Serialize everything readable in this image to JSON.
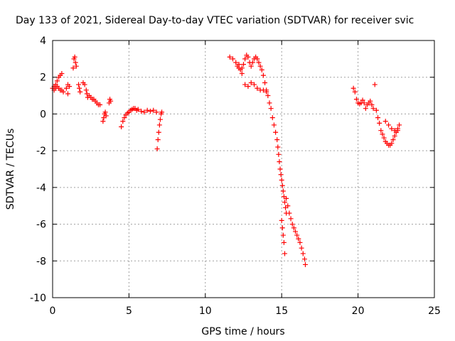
{
  "chart_data": {
    "type": "scatter",
    "title": "Day 133 of 2021, Sidereal Day-to-day VTEC variation (SDTVAR) for receiver svic",
    "xlabel": "GPS time / hours",
    "ylabel": "SDTVAR / TECUs",
    "xlim": [
      0,
      25
    ],
    "ylim": [
      -10,
      4
    ],
    "xticks": [
      0,
      5,
      10,
      15,
      20,
      25
    ],
    "yticks": [
      -10,
      -8,
      -6,
      -4,
      -2,
      0,
      2,
      4
    ],
    "xtick_labels": [
      "0",
      "5",
      "10",
      "15",
      "20",
      "25"
    ],
    "ytick_labels": [
      "-10",
      "-8",
      "-6",
      "-4",
      "-2",
      "0",
      "2",
      "4"
    ],
    "grid": true,
    "marker": "+",
    "marker_color": "#ff0000",
    "series": [
      {
        "name": "SDTVAR",
        "x": [
          0.0,
          0.1,
          0.2,
          0.3,
          0.4,
          0.5,
          0.6,
          0.1,
          0.2,
          0.3,
          0.4,
          0.5,
          0.6,
          0.7,
          0.9,
          1.0,
          1.1,
          1.0,
          1.35,
          1.4,
          1.45,
          1.5,
          1.55,
          1.7,
          1.8,
          1.75,
          2.0,
          2.1,
          2.2,
          2.25,
          2.3,
          2.4,
          2.5,
          2.6,
          2.7,
          2.8,
          2.9,
          3.0,
          3.1,
          3.3,
          3.35,
          3.4,
          3.45,
          3.5,
          3.7,
          3.8,
          3.75,
          4.5,
          4.6,
          4.7,
          4.8,
          4.9,
          5.0,
          5.1,
          5.2,
          5.3,
          5.4,
          5.5,
          5.6,
          5.8,
          6.0,
          6.2,
          6.4,
          6.6,
          6.8,
          6.85,
          6.9,
          6.95,
          7.0,
          7.05,
          7.1,
          7.15,
          11.6,
          11.8,
          12.0,
          12.1,
          12.2,
          12.3,
          12.4,
          12.5,
          12.6,
          12.7,
          12.8,
          12.9,
          13.0,
          13.1,
          13.2,
          13.3,
          13.4,
          13.5,
          13.6,
          13.7,
          13.8,
          13.9,
          14.0,
          12.2,
          12.4,
          12.6,
          12.8,
          13.0,
          13.2,
          13.4,
          13.6,
          13.8,
          14.0,
          14.1,
          14.2,
          14.3,
          14.4,
          14.5,
          14.6,
          14.7,
          14.75,
          14.8,
          14.85,
          14.9,
          14.95,
          15.0,
          15.05,
          15.1,
          15.15,
          15.2,
          15.25,
          15.3,
          15.0,
          15.05,
          15.1,
          15.15,
          15.2,
          15.3,
          15.4,
          15.5,
          15.6,
          15.7,
          15.8,
          15.9,
          16.0,
          16.1,
          16.2,
          16.3,
          16.4,
          16.5,
          16.55,
          19.7,
          19.8,
          19.9,
          20.0,
          20.1,
          20.2,
          20.3,
          20.4,
          20.5,
          20.6,
          20.7,
          20.8,
          20.9,
          21.0,
          21.1,
          21.2,
          21.3,
          21.4,
          21.5,
          21.6,
          21.7,
          21.8,
          21.9,
          22.0,
          22.1,
          22.2,
          22.3,
          22.4,
          22.5,
          22.6,
          22.7,
          21.8,
          22.0,
          22.2,
          22.4,
          22.6
        ],
        "y": [
          1.4,
          1.5,
          1.6,
          1.8,
          2.0,
          2.1,
          2.2,
          1.3,
          1.4,
          1.5,
          1.4,
          1.3,
          1.3,
          1.2,
          1.4,
          1.6,
          1.5,
          1.1,
          2.5,
          3.0,
          3.1,
          2.8,
          2.6,
          1.6,
          1.2,
          1.4,
          1.7,
          1.6,
          1.3,
          1.1,
          0.9,
          1.0,
          0.9,
          0.8,
          0.8,
          0.7,
          0.6,
          0.5,
          0.5,
          -0.4,
          -0.2,
          0.0,
          0.1,
          -0.1,
          0.6,
          0.7,
          0.8,
          -0.7,
          -0.4,
          -0.2,
          -0.05,
          0.05,
          0.1,
          0.2,
          0.25,
          0.3,
          0.3,
          0.2,
          0.25,
          0.15,
          0.1,
          0.2,
          0.15,
          0.2,
          0.1,
          -1.9,
          -1.4,
          -1.0,
          -0.6,
          -0.3,
          0.0,
          0.1,
          3.1,
          3.0,
          2.8,
          2.6,
          2.5,
          2.4,
          2.5,
          2.7,
          3.0,
          3.2,
          3.1,
          2.8,
          2.6,
          2.8,
          3.0,
          3.1,
          3.0,
          2.8,
          2.6,
          2.4,
          2.1,
          1.7,
          1.3,
          2.7,
          2.2,
          1.6,
          1.5,
          1.7,
          1.6,
          1.4,
          1.3,
          1.3,
          1.2,
          1.0,
          0.6,
          0.3,
          -0.2,
          -0.6,
          -1.0,
          -1.4,
          -1.8,
          -2.2,
          -2.6,
          -3.0,
          -3.3,
          -3.6,
          -3.9,
          -4.2,
          -4.5,
          -4.8,
          -5.1,
          -5.4,
          -5.8,
          -6.2,
          -6.6,
          -7.0,
          -7.6,
          -4.6,
          -5.0,
          -5.4,
          -5.7,
          -6.0,
          -6.2,
          -6.4,
          -6.6,
          -6.8,
          -7.0,
          -7.3,
          -7.6,
          -7.9,
          -8.2,
          1.4,
          1.2,
          0.8,
          0.6,
          0.55,
          0.6,
          0.75,
          0.6,
          0.3,
          0.5,
          0.6,
          0.7,
          0.5,
          0.3,
          1.6,
          0.2,
          -0.2,
          -0.5,
          -0.9,
          -1.1,
          -1.3,
          -1.5,
          -1.6,
          -1.7,
          -1.7,
          -1.6,
          -1.4,
          -1.2,
          -1.0,
          -0.8,
          -0.6,
          -0.4,
          -0.6,
          -0.8,
          -0.9,
          -0.9
        ]
      }
    ]
  }
}
